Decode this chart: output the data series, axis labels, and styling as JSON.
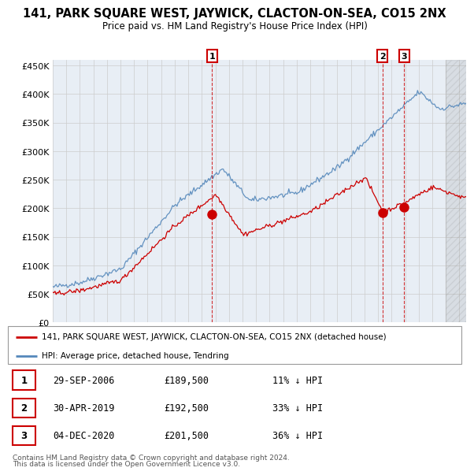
{
  "title": "141, PARK SQUARE WEST, JAYWICK, CLACTON-ON-SEA, CO15 2NX",
  "subtitle": "Price paid vs. HM Land Registry's House Price Index (HPI)",
  "ylabel_ticks": [
    "£0",
    "£50K",
    "£100K",
    "£150K",
    "£200K",
    "£250K",
    "£300K",
    "£350K",
    "£400K",
    "£450K"
  ],
  "ytick_vals": [
    0,
    50000,
    100000,
    150000,
    200000,
    250000,
    300000,
    350000,
    400000,
    450000
  ],
  "ylim": [
    0,
    460000
  ],
  "xlim_start": 1995.0,
  "xlim_end": 2025.5,
  "legend_line1": "141, PARK SQUARE WEST, JAYWICK, CLACTON-ON-SEA, CO15 2NX (detached house)",
  "legend_line2": "HPI: Average price, detached house, Tendring",
  "sale_points": [
    {
      "date_num": 2006.75,
      "price": 189500,
      "label": "1"
    },
    {
      "date_num": 2019.33,
      "price": 192500,
      "label": "2"
    },
    {
      "date_num": 2020.92,
      "price": 201500,
      "label": "3"
    }
  ],
  "table_rows": [
    [
      "1",
      "29-SEP-2006",
      "£189,500",
      "11% ↓ HPI"
    ],
    [
      "2",
      "30-APR-2019",
      "£192,500",
      "33% ↓ HPI"
    ],
    [
      "3",
      "04-DEC-2020",
      "£201,500",
      "36% ↓ HPI"
    ]
  ],
  "footnote1": "Contains HM Land Registry data © Crown copyright and database right 2024.",
  "footnote2": "This data is licensed under the Open Government Licence v3.0.",
  "hpi_color": "#5588bb",
  "hpi_color_light": "#aabbdd",
  "sale_color": "#cc0000",
  "vline_color": "#cc0000",
  "grid_color": "#cccccc",
  "bg_color": "#ffffff",
  "plot_bg_color": "#e8eef5"
}
